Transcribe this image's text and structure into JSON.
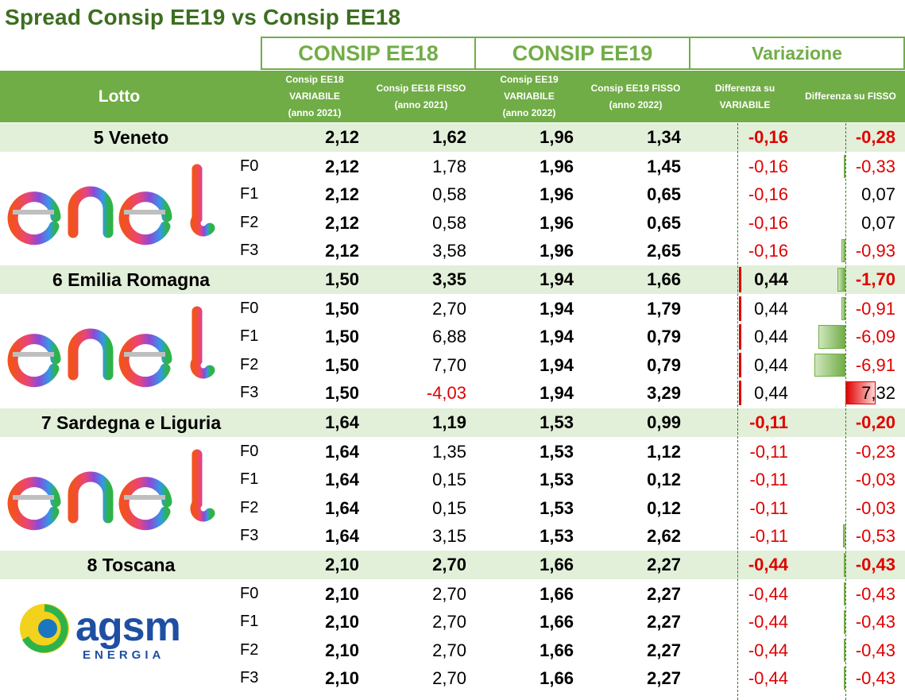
{
  "title": "Spread Consip EE19 vs Consip EE18",
  "groups": {
    "ee18": "CONSIP EE18",
    "ee19": "CONSIP EE19",
    "var": "Variazione"
  },
  "columns": {
    "lotto": "Lotto",
    "ee18_var": "Consip EE18\nVARIABILE\n(anno 2021)",
    "ee18_fix": "Consip EE18 FISSO\n(anno 2021)",
    "ee19_var": "Consip EE19\nVARIABILE\n(anno 2022)",
    "ee19_fix": "Consip EE19 FISSO\n(anno 2022)",
    "diff_var": "Differenza su\nVARIABILE",
    "diff_fix": "Differenza su FISSO"
  },
  "colors": {
    "accent": "#71ad47",
    "title": "#3c6e1f",
    "band": "#e2efd9",
    "negative": "#e00000"
  },
  "lotti": [
    {
      "name": "5 Veneto",
      "logo": "enel",
      "summary": [
        "2,12",
        "1,62",
        "1,96",
        "1,34",
        "-0,16",
        "-0,28"
      ],
      "bands": [
        {
          "label": "F0",
          "v": [
            "2,12",
            "1,78",
            "1,96",
            "1,45",
            "-0,16",
            "-0,33"
          ]
        },
        {
          "label": "F1",
          "v": [
            "2,12",
            "0,58",
            "1,96",
            "0,65",
            "-0,16",
            "0,07"
          ]
        },
        {
          "label": "F2",
          "v": [
            "2,12",
            "0,58",
            "1,96",
            "0,65",
            "-0,16",
            "0,07"
          ]
        },
        {
          "label": "F3",
          "v": [
            "2,12",
            "3,58",
            "1,96",
            "2,65",
            "-0,16",
            "-0,93"
          ]
        }
      ]
    },
    {
      "name": "6 Emilia Romagna",
      "logo": "enel",
      "summary": [
        "1,50",
        "3,35",
        "1,94",
        "1,66",
        "0,44",
        "-1,70"
      ],
      "bands": [
        {
          "label": "F0",
          "v": [
            "1,50",
            "2,70",
            "1,94",
            "1,79",
            "0,44",
            "-0,91"
          ]
        },
        {
          "label": "F1",
          "v": [
            "1,50",
            "6,88",
            "1,94",
            "0,79",
            "0,44",
            "-6,09"
          ]
        },
        {
          "label": "F2",
          "v": [
            "1,50",
            "7,70",
            "1,94",
            "0,79",
            "0,44",
            "-6,91"
          ]
        },
        {
          "label": "F3",
          "v": [
            "1,50",
            "-4,03",
            "1,94",
            "3,29",
            "0,44",
            "7,32"
          ]
        }
      ]
    },
    {
      "name": "7 Sardegna e Liguria",
      "logo": "enel",
      "summary": [
        "1,64",
        "1,19",
        "1,53",
        "0,99",
        "-0,11",
        "-0,20"
      ],
      "bands": [
        {
          "label": "F0",
          "v": [
            "1,64",
            "1,35",
            "1,53",
            "1,12",
            "-0,11",
            "-0,23"
          ]
        },
        {
          "label": "F1",
          "v": [
            "1,64",
            "0,15",
            "1,53",
            "0,12",
            "-0,11",
            "-0,03"
          ]
        },
        {
          "label": "F2",
          "v": [
            "1,64",
            "0,15",
            "1,53",
            "0,12",
            "-0,11",
            "-0,03"
          ]
        },
        {
          "label": "F3",
          "v": [
            "1,64",
            "3,15",
            "1,53",
            "2,62",
            "-0,11",
            "-0,53"
          ]
        }
      ]
    },
    {
      "name": "8 Toscana",
      "logo": "agsm",
      "summary": [
        "2,10",
        "2,70",
        "1,66",
        "2,27",
        "-0,44",
        "-0,43"
      ],
      "bands": [
        {
          "label": "F0",
          "v": [
            "2,10",
            "2,70",
            "1,66",
            "2,27",
            "-0,44",
            "-0,43"
          ]
        },
        {
          "label": "F1",
          "v": [
            "2,10",
            "2,70",
            "1,66",
            "2,27",
            "-0,44",
            "-0,43"
          ]
        },
        {
          "label": "F2",
          "v": [
            "2,10",
            "2,70",
            "1,66",
            "2,27",
            "-0,44",
            "-0,43"
          ]
        },
        {
          "label": "F3",
          "v": [
            "2,10",
            "2,70",
            "1,66",
            "2,27",
            "-0,44",
            "-0,43"
          ]
        }
      ]
    }
  ],
  "logos": {
    "enel": "enel",
    "agsm_main": "agsm",
    "agsm_sub": "ENERGIA"
  }
}
